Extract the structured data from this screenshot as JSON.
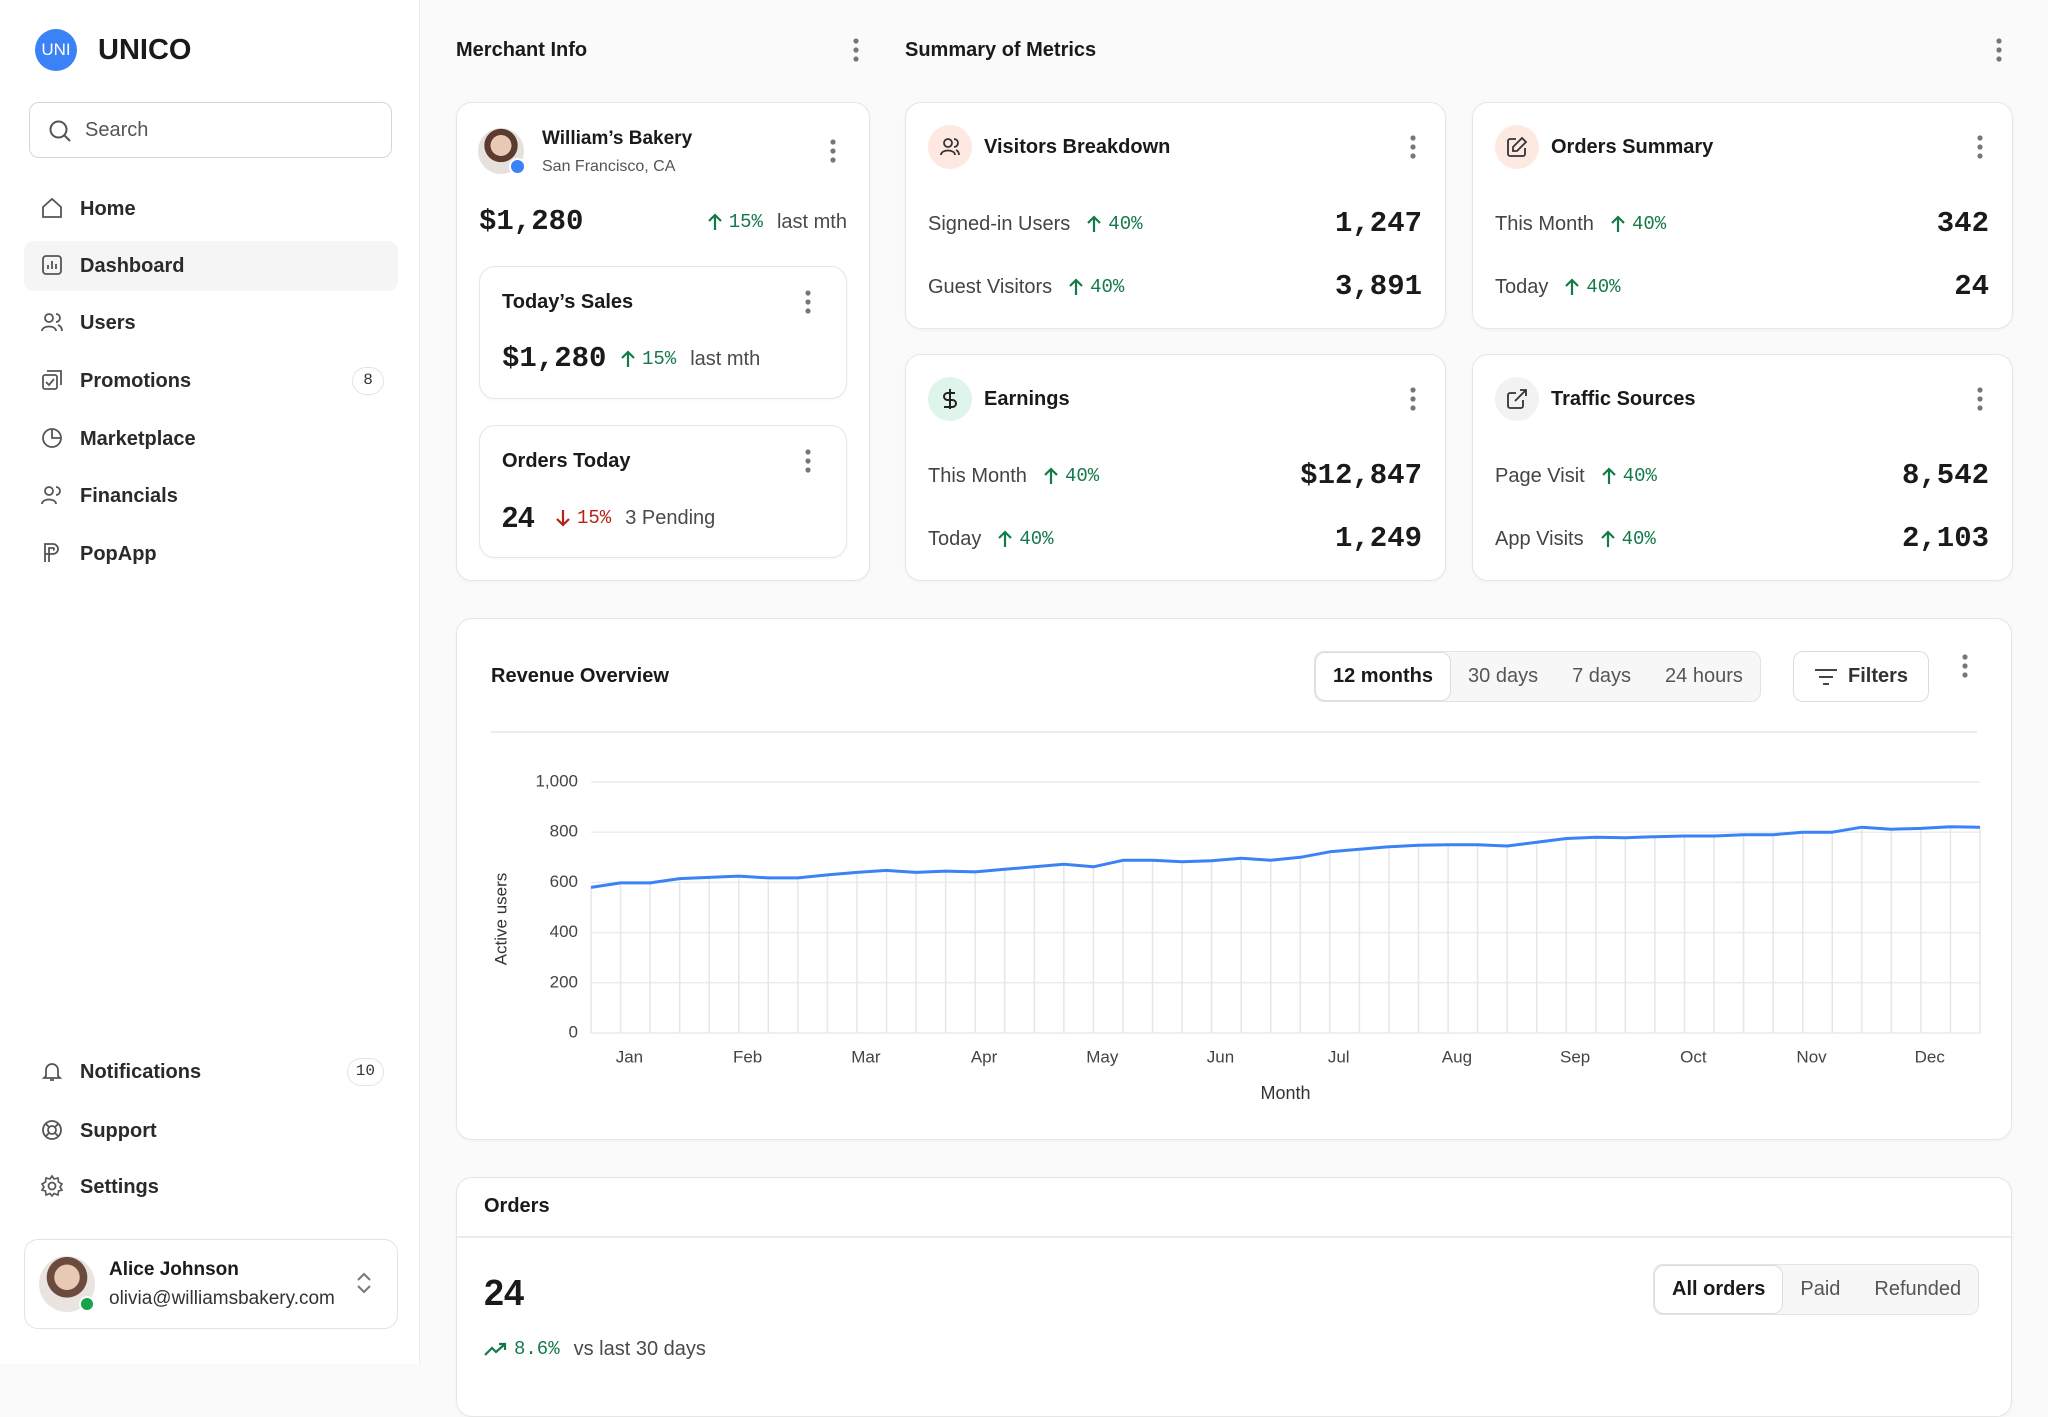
{
  "sidebar": {
    "logo": "UNI",
    "brand": "UNICO",
    "search_placeholder": "Search",
    "nav": [
      {
        "label": "Home"
      },
      {
        "label": "Dashboard",
        "active": true
      },
      {
        "label": "Users"
      },
      {
        "label": "Promotions",
        "badge": "8"
      },
      {
        "label": "Marketplace"
      },
      {
        "label": "Financials"
      },
      {
        "label": "PopApp"
      }
    ],
    "bottom_nav": [
      {
        "label": "Notifications",
        "badge": "10"
      },
      {
        "label": "Support"
      },
      {
        "label": "Settings"
      }
    ],
    "user": {
      "name": "Alice Johnson",
      "email": "olivia@williamsbakery.com"
    }
  },
  "merchant_info": {
    "section_title": "Merchant Info",
    "name": "William’s Bakery",
    "location": "San Francisco, CA",
    "amount": "$1,280",
    "change": "15%",
    "change_note": "last mth",
    "todays_sales": {
      "title": "Today’s Sales",
      "amount": "$1,280",
      "change": "15%",
      "change_note": "last mth"
    },
    "orders_today": {
      "title": "Orders Today",
      "count": "24",
      "change": "15%",
      "change_direction": "down",
      "change_note": "3 Pending"
    }
  },
  "summary_of_metrics": {
    "section_title": "Summary of Metrics",
    "cards": [
      {
        "title": "Visitors Breakdown",
        "rows": [
          {
            "label": "Signed-in Users",
            "change": "40%",
            "value": "1,247"
          },
          {
            "label": "Guest Visitors",
            "change": "40%",
            "value": "3,891"
          }
        ]
      },
      {
        "title": "Orders Summary",
        "rows": [
          {
            "label": "This Month",
            "change": "40%",
            "value": "342"
          },
          {
            "label": "Today",
            "change": "40%",
            "value": "24"
          }
        ]
      },
      {
        "title": "Earnings",
        "rows": [
          {
            "label": "This Month",
            "change": "40%",
            "value": "$12,847"
          },
          {
            "label": "Today",
            "change": "40%",
            "value": "1,249"
          }
        ]
      },
      {
        "title": "Traffic Sources",
        "rows": [
          {
            "label": "Page Visit",
            "change": "40%",
            "value": "8,542"
          },
          {
            "label": "App Visits",
            "change": "40%",
            "value": "2,103"
          }
        ]
      }
    ]
  },
  "revenue_controls": {
    "ranges": [
      {
        "label": "12 months",
        "active": true
      },
      {
        "label": "30 days"
      },
      {
        "label": "7 days"
      },
      {
        "label": "24 hours"
      }
    ],
    "filters": "Filters"
  },
  "chart_data": {
    "type": "line",
    "title": "Revenue Overview",
    "x_label": "Month",
    "y_label": "Active users",
    "color": "#3b82f6",
    "drop_lines": true,
    "grid": true,
    "categories": [
      null,
      "Jan",
      null,
      null,
      null,
      "Feb",
      null,
      null,
      null,
      "Mar",
      null,
      null,
      null,
      "Apr",
      null,
      null,
      null,
      "May",
      null,
      null,
      null,
      "Jun",
      null,
      null,
      null,
      "Jul",
      null,
      null,
      null,
      "Aug",
      null,
      null,
      null,
      "Sep",
      null,
      null,
      null,
      "Oct",
      null,
      null,
      null,
      "Nov",
      null,
      null,
      null,
      "Dec",
      null,
      null
    ],
    "values": [
      580,
      598,
      598,
      615,
      620,
      625,
      618,
      618,
      630,
      640,
      648,
      640,
      645,
      642,
      652,
      662,
      672,
      662,
      688,
      688,
      682,
      686,
      696,
      688,
      700,
      722,
      732,
      742,
      748,
      750,
      750,
      745,
      760,
      775,
      780,
      778,
      782,
      785,
      785,
      790,
      790,
      800,
      800,
      820,
      812,
      815,
      822,
      820
    ],
    "ylim": [
      0,
      1000
    ],
    "yticks": [
      0,
      200,
      400,
      600,
      800,
      {
        "value": 1000,
        "label": "1,000"
      }
    ]
  },
  "orders": {
    "title": "Orders",
    "count": "24",
    "change": "8.6%",
    "change_note": "vs last 30 days",
    "tabs": [
      {
        "label": "All orders",
        "active": true
      },
      {
        "label": "Paid"
      },
      {
        "label": "Refunded"
      }
    ]
  }
}
